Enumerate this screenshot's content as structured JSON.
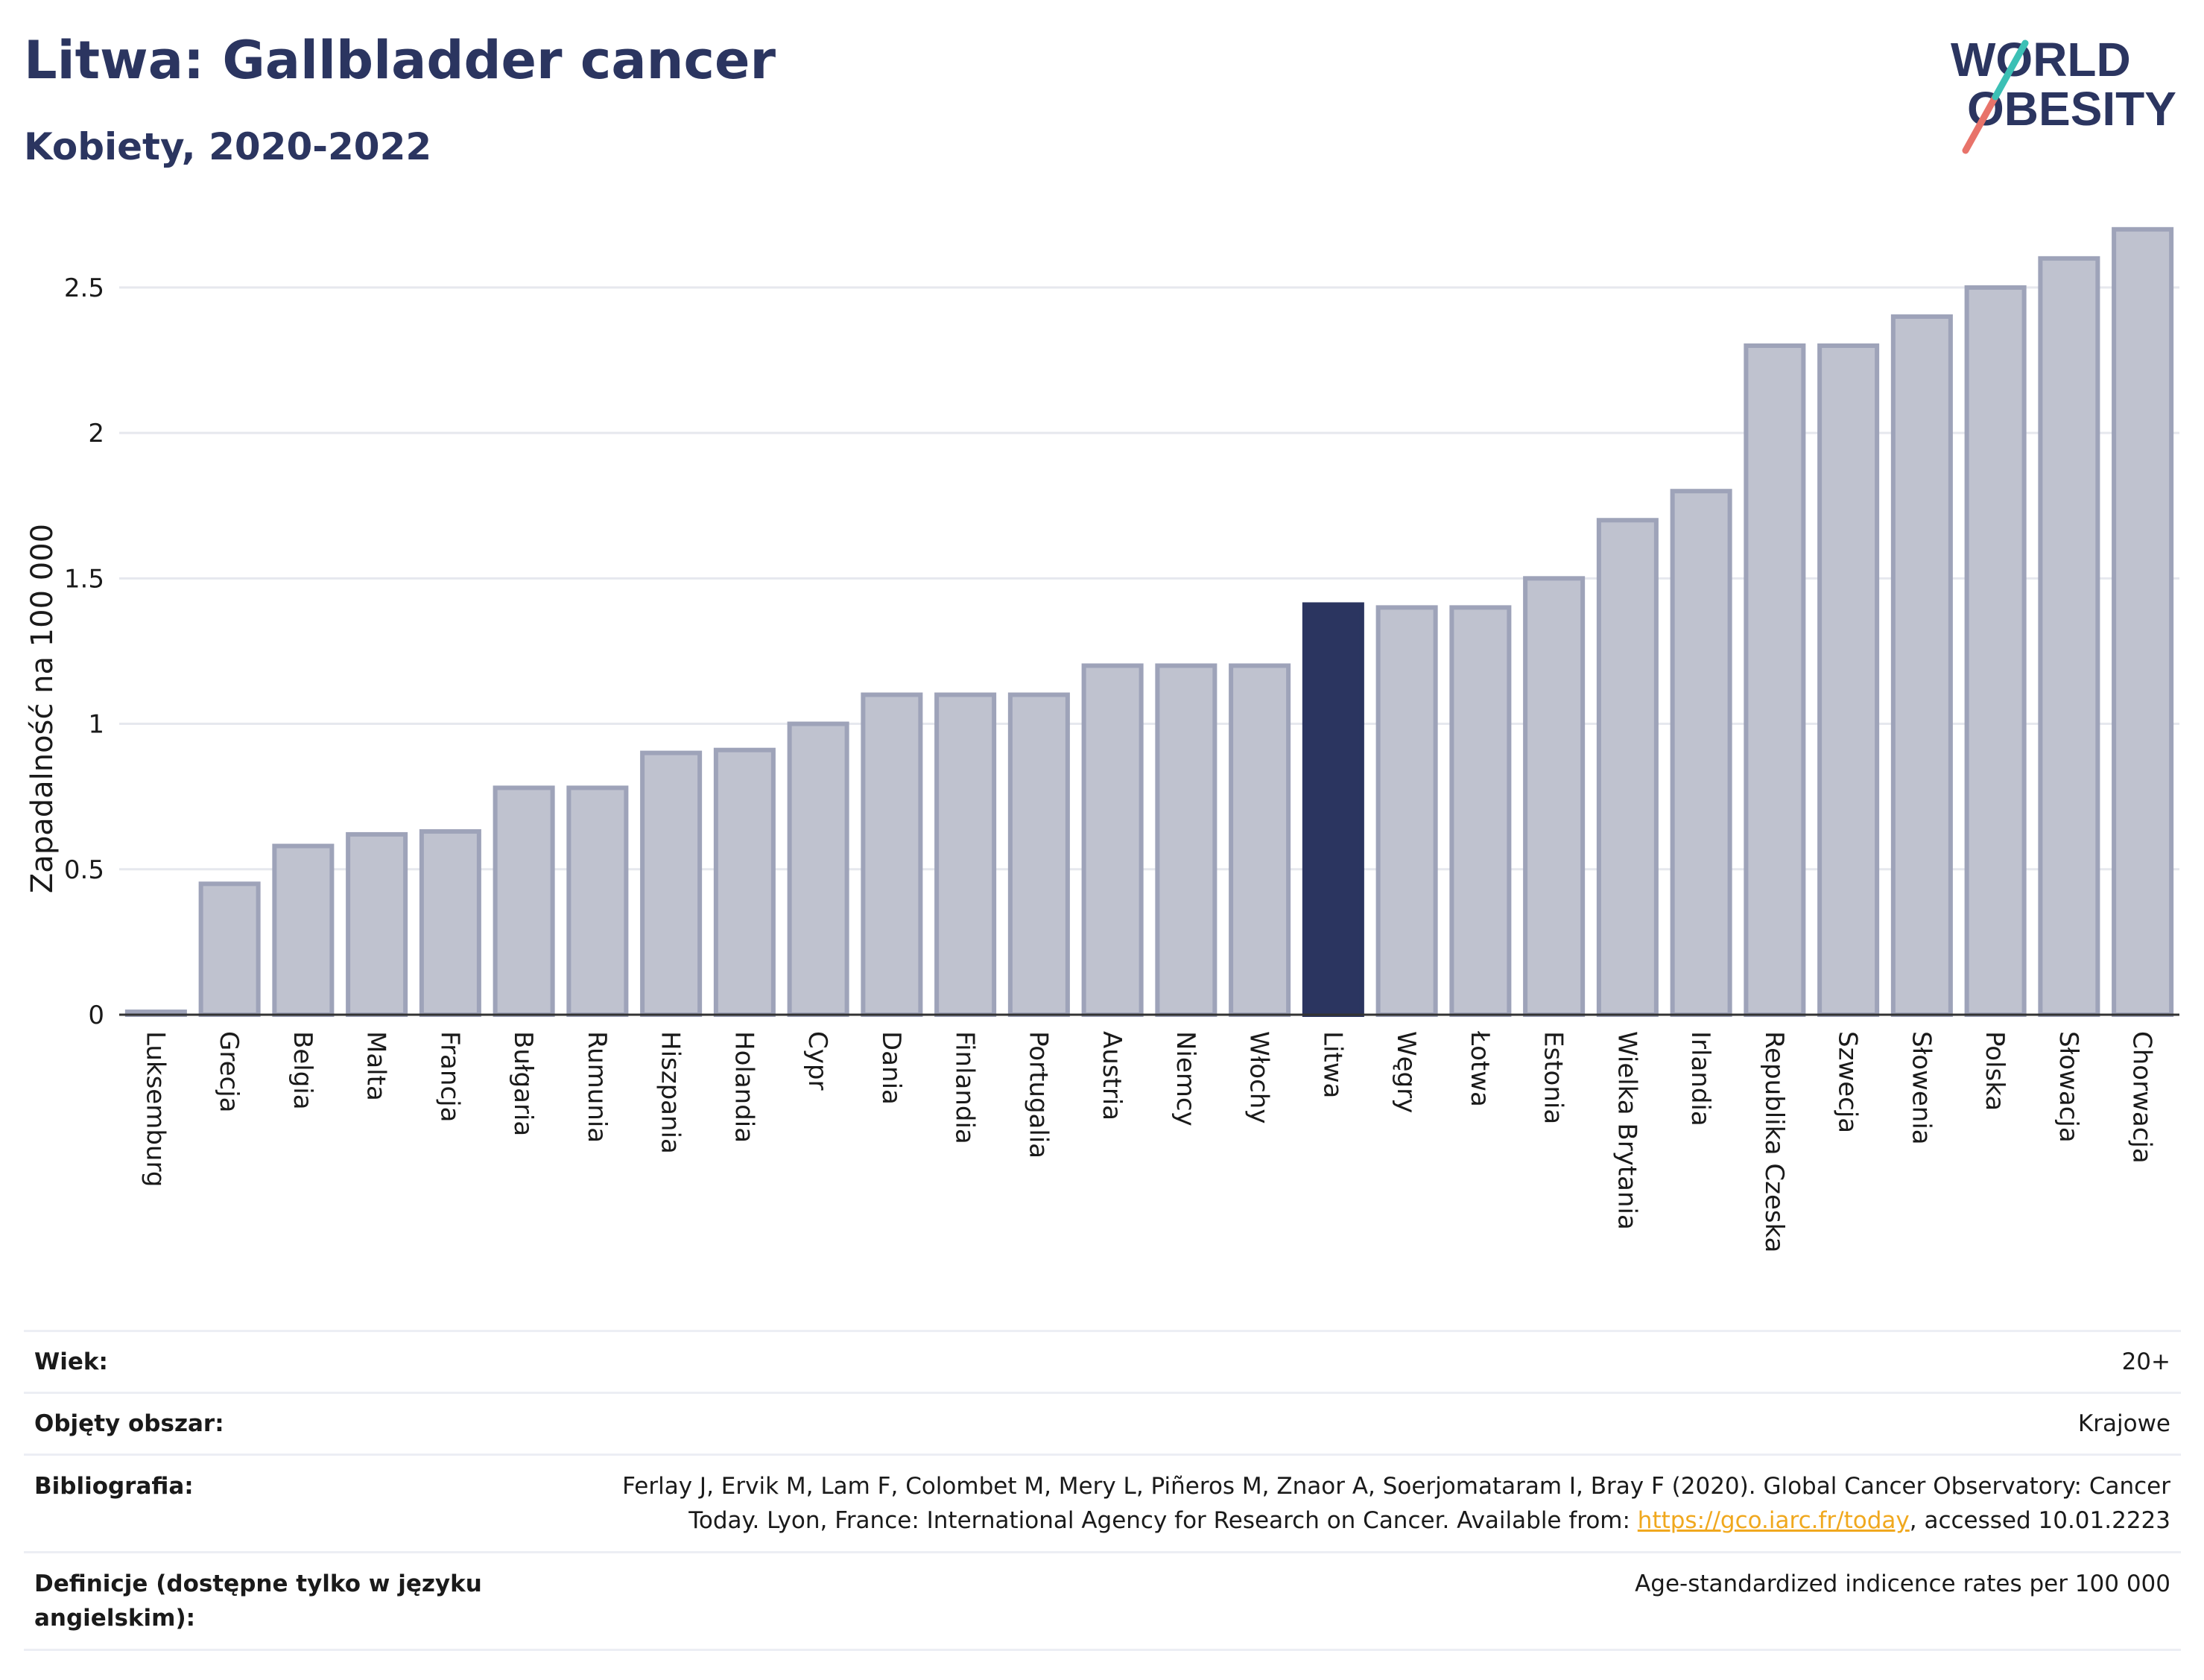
{
  "header": {
    "title": "Litwa: Gallbladder cancer",
    "subtitle": "Kobiety, 2020-2022",
    "logo_line1": "WORLD",
    "logo_line2": "OBESITY"
  },
  "chart_data": {
    "type": "bar",
    "ylabel": "Zapadalność na 100 000",
    "ylim": [
      0,
      2.72
    ],
    "yticks": [
      "0",
      "0.5",
      "1",
      "1.5",
      "2",
      "2.5"
    ],
    "yticks_values": [
      0,
      0.5,
      1,
      1.5,
      2,
      2.5
    ],
    "grid": true,
    "categories": [
      "Luksemburg",
      "Grecja",
      "Belgia",
      "Malta",
      "Francja",
      "Bułgaria",
      "Rumunia",
      "Hiszpania",
      "Holandia",
      "Cypr",
      "Dania",
      "Finlandia",
      "Portugalia",
      "Austria",
      "Niemcy",
      "Włochy",
      "Litwa",
      "Węgry",
      "Łotwa",
      "Estonia",
      "Wielka Brytania",
      "Irlandia",
      "Republika Czeska",
      "Szwecja",
      "Słowenia",
      "Polska",
      "Słowacja",
      "Chorwacja"
    ],
    "values": [
      0.01,
      0.45,
      0.58,
      0.62,
      0.63,
      0.78,
      0.78,
      0.9,
      0.91,
      1.0,
      1.1,
      1.1,
      1.1,
      1.2,
      1.2,
      1.2,
      1.41,
      1.4,
      1.4,
      1.5,
      1.7,
      1.8,
      2.3,
      2.3,
      2.4,
      2.5,
      2.6,
      2.7
    ],
    "highlight": "Litwa",
    "colors": {
      "bar": "#bfc2cf",
      "bar_edge": "#9ea3b9",
      "highlight": "#2b3560",
      "grid": "#e6e8ee",
      "axis": "#333333"
    }
  },
  "info": {
    "rows": [
      {
        "label": "Wiek:",
        "value": "20+"
      },
      {
        "label": "Objęty obszar:",
        "value": "Krajowe"
      },
      {
        "label": "Bibliografia:",
        "value_pre": "Ferlay J, Ervik M, Lam F, Colombet M, Mery L, Piñeros M, Znaor A, Soerjomataram I, Bray F (2020). Global Cancer Observatory: Cancer Today. Lyon, France: International Agency for Research on Cancer. Available from: ",
        "link": "https://gco.iarc.fr/today",
        "value_post": ", accessed 10.01.2223"
      },
      {
        "label": "Definicje (dostępne tylko w języku angielskim):",
        "value": "Age-standardized indicence rates per 100 000"
      }
    ]
  }
}
